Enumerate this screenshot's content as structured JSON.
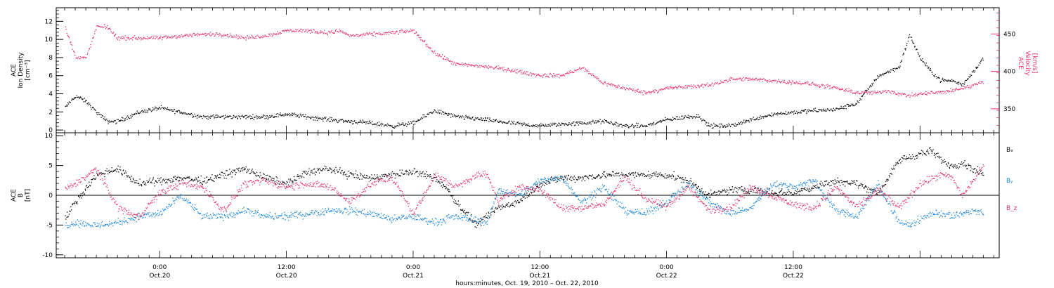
{
  "colors": {
    "black": "#000000",
    "pink": "#e8336a",
    "blue": "#1a86e0"
  },
  "chart_data": [
    {
      "type": "scatter",
      "name": "ace-density-velocity-panel",
      "x_unit": "hours since 2010-10-19 00:00",
      "xlim": [
        14.2,
        103.5
      ],
      "left_axis": {
        "label_lines": [
          "ACE",
          "Ion Density",
          "[cm⁻³]"
        ],
        "ylim": [
          -0.3,
          13.5
        ],
        "ticks": [
          0,
          2,
          4,
          6,
          8,
          10,
          12
        ],
        "color": "#000000"
      },
      "right_axis": {
        "label_lines": [
          "ACE",
          "Velocity",
          "[km/s]"
        ],
        "ylim": [
          318,
          485
        ],
        "ticks": [
          350,
          400,
          450
        ],
        "color": "#e8336a"
      },
      "series": [
        {
          "color": "#000000",
          "axis": "left",
          "x": [
            15,
            16,
            17,
            18,
            19,
            20,
            22,
            24,
            26,
            28,
            30,
            32,
            34,
            36,
            38,
            40,
            42,
            44,
            46,
            48,
            49,
            50,
            52,
            54,
            56,
            58,
            60,
            62,
            64,
            66,
            68,
            70,
            72,
            74,
            75,
            76,
            78,
            80,
            82,
            84,
            86,
            88,
            90,
            91,
            92,
            93,
            94,
            95,
            96,
            97,
            98,
            99,
            100,
            101,
            102
          ],
          "y": [
            2.5,
            3.8,
            3.2,
            2.0,
            1.0,
            1.0,
            2.0,
            2.5,
            2.0,
            1.5,
            1.5,
            1.5,
            1.5,
            1.8,
            1.5,
            1.2,
            1.0,
            0.8,
            0.5,
            0.8,
            1.5,
            2.2,
            1.5,
            1.3,
            1.0,
            0.7,
            0.5,
            0.7,
            0.8,
            1.0,
            0.5,
            0.5,
            1.2,
            1.5,
            1.6,
            0.5,
            0.5,
            1.2,
            1.8,
            2.0,
            2.2,
            2.3,
            3.0,
            4.5,
            6.0,
            6.5,
            7.0,
            10.5,
            8.0,
            6.5,
            5.5,
            5.5,
            5.0,
            6.5,
            8.0
          ]
        },
        {
          "color": "#e8336a",
          "axis": "right",
          "x": [
            15,
            16,
            17,
            18,
            19,
            20,
            22,
            24,
            26,
            28,
            30,
            32,
            34,
            36,
            38,
            40,
            41,
            42,
            44,
            46,
            48,
            50,
            52,
            54,
            56,
            58,
            60,
            62,
            64,
            66,
            68,
            70,
            72,
            74,
            76,
            78,
            80,
            82,
            84,
            86,
            88,
            90,
            91,
            92,
            93,
            94,
            95,
            96,
            97,
            98,
            99,
            100,
            101,
            102
          ],
          "y": [
            460,
            420,
            418,
            460,
            460,
            445,
            445,
            445,
            448,
            450,
            450,
            445,
            448,
            455,
            455,
            452,
            455,
            448,
            450,
            452,
            455,
            425,
            410,
            408,
            405,
            400,
            395,
            395,
            405,
            385,
            378,
            372,
            378,
            380,
            382,
            390,
            390,
            388,
            386,
            383,
            378,
            372,
            372,
            372,
            375,
            370,
            368,
            370,
            372,
            372,
            375,
            378,
            382,
            388
          ]
        }
      ]
    },
    {
      "type": "scatter",
      "name": "ace-imf-panel",
      "x_unit": "hours since 2010-10-19 00:00",
      "xlim": [
        14.2,
        103.5
      ],
      "left_axis": {
        "label_lines": [
          "ACE",
          "B",
          "[nT]"
        ],
        "ylim": [
          -10.5,
          10.5
        ],
        "ticks": [
          -10,
          -5,
          0,
          5,
          10
        ],
        "color": "#000000"
      },
      "zero_line": true,
      "series": [
        {
          "name": "Bₓ",
          "color": "#000000",
          "x": [
            15,
            16,
            18,
            20,
            22,
            24,
            26,
            28,
            30,
            32,
            34,
            36,
            38,
            40,
            42,
            44,
            46,
            48,
            50,
            51,
            52,
            53,
            54,
            56,
            58,
            60,
            62,
            64,
            66,
            68,
            70,
            72,
            74,
            76,
            78,
            80,
            82,
            84,
            86,
            88,
            90,
            92,
            93,
            94,
            95,
            96,
            97,
            98,
            99,
            100,
            101,
            102
          ],
          "y": [
            -4,
            -1,
            3.5,
            4.5,
            2.0,
            2.5,
            3.0,
            2.5,
            3.5,
            4.5,
            3.0,
            2.0,
            4.0,
            4.5,
            3.5,
            3.0,
            3.5,
            4.0,
            3.0,
            1.5,
            -1.0,
            -3.0,
            -5.0,
            -2.0,
            -1.0,
            2.0,
            3.0,
            3.0,
            3.5,
            3.5,
            3.5,
            3.5,
            2.5,
            0.0,
            1.0,
            1.0,
            0.5,
            0.5,
            1.5,
            2.5,
            2.0,
            0.5,
            3.0,
            6.0,
            6.5,
            7.0,
            7.5,
            6.0,
            5.0,
            5.5,
            4.5,
            3.5
          ]
        },
        {
          "name": "Bᵧ",
          "color": "#1a86e0",
          "x": [
            15,
            16,
            18,
            20,
            22,
            24,
            26,
            28,
            30,
            32,
            34,
            36,
            38,
            40,
            42,
            44,
            46,
            48,
            50,
            52,
            54,
            55,
            56,
            58,
            60,
            62,
            64,
            66,
            68,
            70,
            72,
            74,
            76,
            78,
            80,
            82,
            84,
            86,
            88,
            90,
            92,
            94,
            95,
            96,
            97,
            98,
            99,
            100,
            101,
            102
          ],
          "y": [
            -5,
            -4.5,
            -5,
            -4.5,
            -3.5,
            -3.0,
            0.0,
            -3.5,
            -3.5,
            -2.5,
            -3.5,
            -3.5,
            -3.0,
            -2.5,
            -2.5,
            -3.0,
            -4.0,
            -3.5,
            -4.5,
            -3.5,
            -4.0,
            -4.5,
            1.0,
            0.0,
            2.5,
            3.0,
            -1.0,
            1.5,
            -2.5,
            -3.0,
            -1.0,
            2.0,
            -1.0,
            -3.0,
            -2.0,
            2.0,
            1.5,
            2.5,
            -2.5,
            -3.5,
            2.0,
            -4.5,
            -5.0,
            -4.0,
            -3.0,
            -3.0,
            -3.5,
            -3.0,
            -2.5,
            -3.0
          ]
        },
        {
          "name": "B_z",
          "color": "#e8336a",
          "x": [
            15,
            16,
            18,
            20,
            22,
            24,
            26,
            28,
            30,
            32,
            34,
            36,
            38,
            40,
            42,
            44,
            46,
            48,
            49,
            50,
            52,
            54,
            55,
            56,
            58,
            60,
            62,
            64,
            66,
            68,
            70,
            72,
            74,
            76,
            78,
            80,
            82,
            84,
            86,
            88,
            90,
            92,
            94,
            96,
            98,
            99,
            100,
            101,
            102
          ],
          "y": [
            1,
            2,
            4.5,
            -2.0,
            -3.5,
            0.5,
            2.0,
            1.5,
            -2.5,
            2.0,
            2.5,
            1.5,
            2.0,
            1.5,
            -1.0,
            2.0,
            3.0,
            -3.0,
            0.0,
            3.5,
            1.5,
            3.5,
            3.5,
            -1.0,
            1.5,
            1.0,
            -2.0,
            -2.0,
            -1.5,
            3.0,
            -0.5,
            -2.0,
            1.5,
            -2.5,
            -2.0,
            1.5,
            0.0,
            -1.5,
            -2.0,
            1.5,
            -2.0,
            1.0,
            -2.0,
            2.0,
            3.5,
            3.0,
            0.0,
            2.5,
            5.0
          ]
        }
      ]
    }
  ],
  "x_axis": {
    "ticks": [
      {
        "x": 24,
        "time": "0:00",
        "date": "Oct.20"
      },
      {
        "x": 36,
        "time": "12:00",
        "date": "Oct.20"
      },
      {
        "x": 48,
        "time": "0:00",
        "date": "Oct.21"
      },
      {
        "x": 60,
        "time": "12:00",
        "date": "Oct.21"
      },
      {
        "x": 72,
        "time": "0:00",
        "date": "Oct.22"
      },
      {
        "x": 84,
        "time": "12:00",
        "date": "Oct.22"
      }
    ],
    "title": "hours:minutes, Oct. 19, 2010 – Oct. 22, 2010"
  }
}
